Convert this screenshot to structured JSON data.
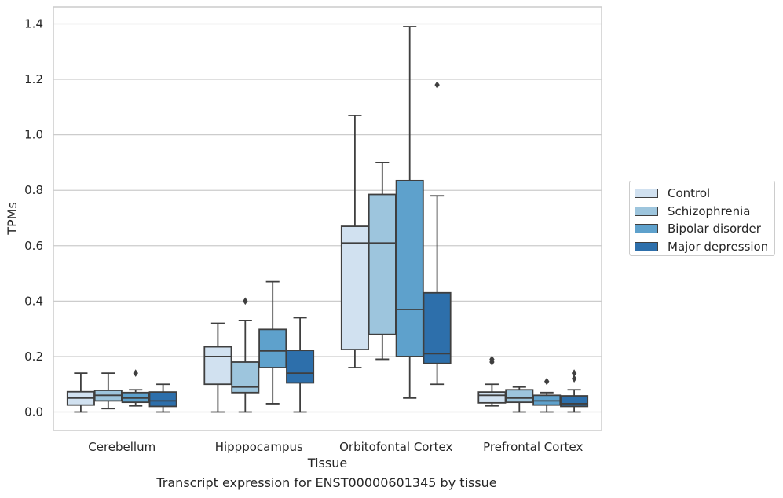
{
  "caption": "Transcript expression for ENST00000601345 by tissue",
  "chart_data": {
    "type": "box",
    "xlabel": "Tissue",
    "ylabel": "TPMs",
    "ylim": [
      -0.065,
      1.46
    ],
    "yticks": [
      "0.0",
      "0.2",
      "0.4",
      "0.6",
      "0.8",
      "1.0",
      "1.2",
      "1.4"
    ],
    "ytick_values": [
      0,
      0.2,
      0.4,
      0.6,
      0.8,
      1.0,
      1.2,
      1.4
    ],
    "grid": true,
    "legend_placement": "right, outside plot",
    "categories": [
      "Cerebellum",
      "Hipppocampus",
      "Orbitofontal Cortex",
      "Prefrontal Cortex"
    ],
    "series": [
      {
        "name": "Control",
        "color": "#d1e1f0",
        "boxes": [
          {
            "whislo": 0.0,
            "q1": 0.025,
            "med": 0.05,
            "q3": 0.073,
            "whishi": 0.14,
            "fliers": []
          },
          {
            "whislo": 0.0,
            "q1": 0.1,
            "med": 0.2,
            "q3": 0.235,
            "whishi": 0.32,
            "fliers": []
          },
          {
            "whislo": 0.16,
            "q1": 0.225,
            "med": 0.61,
            "q3": 0.67,
            "whishi": 1.07,
            "fliers": []
          },
          {
            "whislo": 0.022,
            "q1": 0.033,
            "med": 0.06,
            "q3": 0.072,
            "whishi": 0.1,
            "fliers": [
              0.18,
              0.19
            ]
          }
        ]
      },
      {
        "name": "Schizophrenia",
        "color": "#9dc5dd",
        "boxes": [
          {
            "whislo": 0.012,
            "q1": 0.04,
            "med": 0.06,
            "q3": 0.078,
            "whishi": 0.14,
            "fliers": []
          },
          {
            "whislo": 0.0,
            "q1": 0.07,
            "med": 0.09,
            "q3": 0.18,
            "whishi": 0.33,
            "fliers": [
              0.4
            ]
          },
          {
            "whislo": 0.19,
            "q1": 0.28,
            "med": 0.61,
            "q3": 0.785,
            "whishi": 0.9,
            "fliers": []
          },
          {
            "whislo": 0.0,
            "q1": 0.035,
            "med": 0.05,
            "q3": 0.08,
            "whishi": 0.09,
            "fliers": []
          }
        ]
      },
      {
        "name": "Bipolar disorder",
        "color": "#5ea1cc",
        "boxes": [
          {
            "whislo": 0.022,
            "q1": 0.035,
            "med": 0.05,
            "q3": 0.07,
            "whishi": 0.08,
            "fliers": [
              0.14
            ]
          },
          {
            "whislo": 0.03,
            "q1": 0.16,
            "med": 0.22,
            "q3": 0.298,
            "whishi": 0.47,
            "fliers": []
          },
          {
            "whislo": 0.05,
            "q1": 0.2,
            "med": 0.37,
            "q3": 0.835,
            "whishi": 1.39,
            "fliers": []
          },
          {
            "whislo": 0.0,
            "q1": 0.025,
            "med": 0.04,
            "q3": 0.06,
            "whishi": 0.07,
            "fliers": [
              0.11
            ]
          }
        ]
      },
      {
        "name": "Major depression",
        "color": "#2d6fab",
        "boxes": [
          {
            "whislo": 0.0,
            "q1": 0.02,
            "med": 0.04,
            "q3": 0.072,
            "whishi": 0.1,
            "fliers": []
          },
          {
            "whislo": 0.0,
            "q1": 0.105,
            "med": 0.14,
            "q3": 0.222,
            "whishi": 0.34,
            "fliers": []
          },
          {
            "whislo": 0.1,
            "q1": 0.175,
            "med": 0.21,
            "q3": 0.43,
            "whishi": 0.78,
            "fliers": [
              1.18
            ]
          },
          {
            "whislo": 0.0,
            "q1": 0.02,
            "med": 0.03,
            "q3": 0.058,
            "whishi": 0.08,
            "fliers": [
              0.12,
              0.14
            ]
          }
        ]
      }
    ]
  }
}
